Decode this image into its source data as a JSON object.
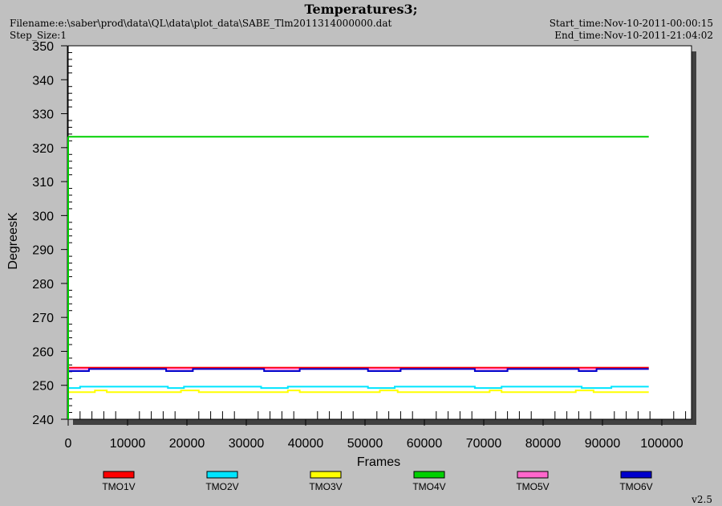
{
  "header": {
    "title": "Temperatures3;",
    "filename": "Filename:e:\\saber\\prod\\data\\QL\\data\\plot_data\\SABE_Tlm2011314000000.dat",
    "step_size": "Step_Size:1",
    "start_time": "Start_time:Nov-10-2011-00:00:15",
    "end_time": "End_time:Nov-10-2011-21:04:02"
  },
  "footer": {
    "version": "v2.5"
  },
  "chart_data": {
    "type": "line",
    "title": "Temperatures3;",
    "xlabel": "Frames",
    "ylabel": "DegreesK",
    "xlim": [
      0,
      105000
    ],
    "ylim": [
      240,
      350
    ],
    "x_ticks": [
      0,
      10000,
      20000,
      30000,
      40000,
      50000,
      60000,
      70000,
      80000,
      90000,
      100000
    ],
    "y_ticks": [
      240,
      250,
      260,
      270,
      280,
      290,
      300,
      310,
      320,
      330,
      340,
      350
    ],
    "grid": false,
    "legend_position": "bottom",
    "series": [
      {
        "name": "TMO1V",
        "color": "#ff0000",
        "x": [
          0,
          97800
        ],
        "y": [
          255.2,
          255.2
        ]
      },
      {
        "name": "TMO2V",
        "color": "#00e5ff",
        "x": [
          0,
          2000,
          2000,
          16800,
          16800,
          19500,
          19500,
          32500,
          32500,
          37000,
          37000,
          50500,
          50500,
          55000,
          55000,
          68500,
          68500,
          73000,
          73000,
          86500,
          86500,
          91500,
          91500,
          97800
        ],
        "y": [
          249.2,
          249.2,
          249.6,
          249.6,
          249.2,
          249.2,
          249.6,
          249.6,
          249.2,
          249.2,
          249.6,
          249.6,
          249.2,
          249.2,
          249.6,
          249.6,
          249.2,
          249.2,
          249.6,
          249.6,
          249.2,
          249.2,
          249.6,
          249.6
        ]
      },
      {
        "name": "TMO3V",
        "color": "#ffff00",
        "x": [
          0,
          4500,
          4500,
          6500,
          6500,
          19000,
          19000,
          22000,
          22000,
          37000,
          37000,
          39000,
          39000,
          52500,
          52500,
          55500,
          55500,
          71000,
          71000,
          73000,
          73000,
          85500,
          85500,
          88500,
          88500,
          97800
        ],
        "y": [
          248.0,
          248.0,
          248.5,
          248.5,
          248.0,
          248.0,
          248.5,
          248.5,
          248.0,
          248.0,
          248.5,
          248.5,
          248.0,
          248.0,
          248.5,
          248.5,
          248.0,
          248.0,
          248.5,
          248.5,
          248.0,
          248.0,
          248.5,
          248.5,
          248.0,
          248.0
        ]
      },
      {
        "name": "TMO4V",
        "color": "#00d000",
        "x": [
          0,
          97800
        ],
        "y": [
          323.2,
          323.2
        ]
      },
      {
        "name": "TMO5V",
        "color": "#ff66cc",
        "x": [
          0,
          97800
        ],
        "y": [
          254.8,
          254.8
        ]
      },
      {
        "name": "TMO6V",
        "color": "#0000cc",
        "x": [
          0,
          3500,
          3500,
          16500,
          16500,
          21000,
          21000,
          33000,
          33000,
          39000,
          39000,
          50500,
          50500,
          56000,
          56000,
          68500,
          68500,
          74000,
          74000,
          86000,
          86000,
          89000,
          89000,
          97800
        ],
        "y": [
          254.2,
          254.2,
          254.8,
          254.8,
          254.2,
          254.2,
          254.8,
          254.8,
          254.2,
          254.2,
          254.8,
          254.8,
          254.2,
          254.2,
          254.8,
          254.8,
          254.2,
          254.2,
          254.8,
          254.8,
          254.2,
          254.2,
          254.8,
          254.8
        ]
      }
    ]
  }
}
